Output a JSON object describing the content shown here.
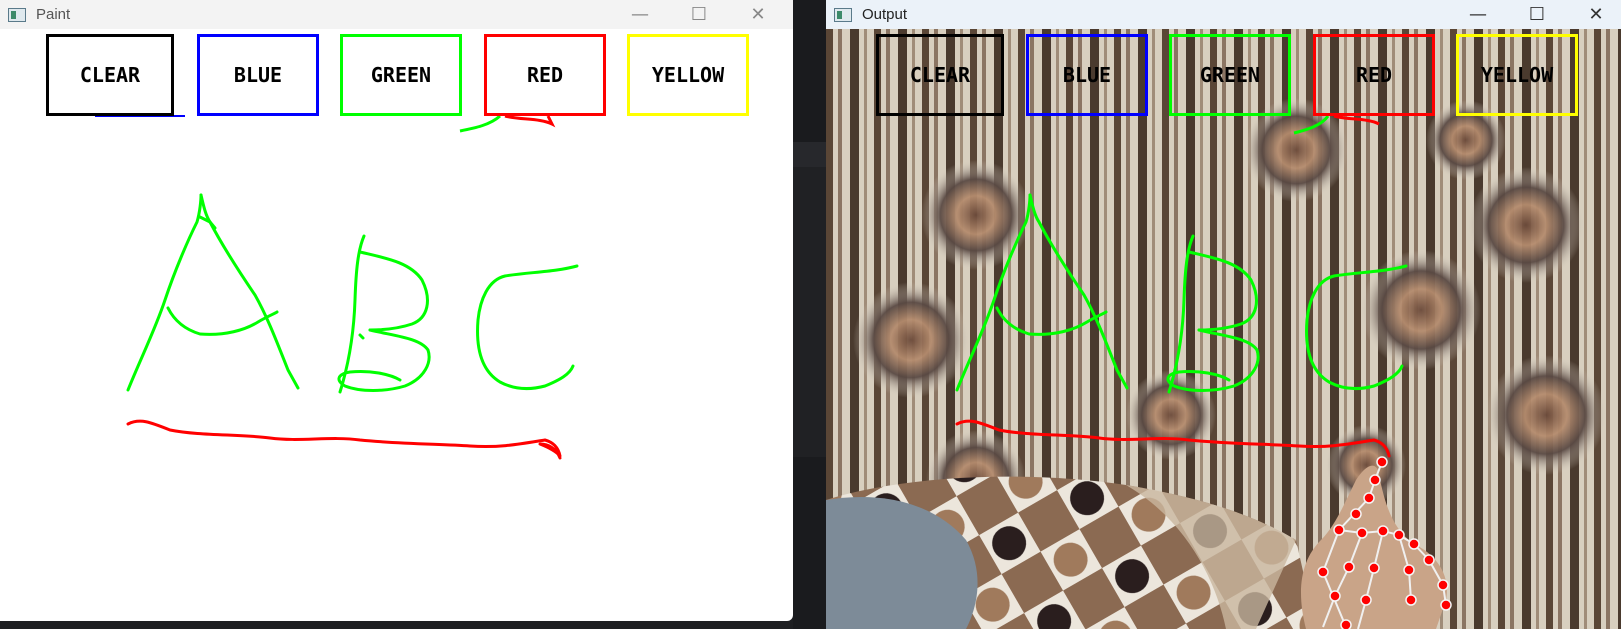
{
  "paint_window": {
    "title": "Paint",
    "icon": "app-window-icon",
    "controls": {
      "minimize": "—",
      "maximize": "☐",
      "close": "✕"
    }
  },
  "output_window": {
    "title": "Output",
    "icon": "app-window-icon",
    "controls": {
      "minimize": "—",
      "maximize": "☐",
      "close": "✕"
    }
  },
  "color_buttons": [
    {
      "label": "CLEAR",
      "color": "#000000"
    },
    {
      "label": "BLUE",
      "color": "#0000ff"
    },
    {
      "label": "GREEN",
      "color": "#00ff00"
    },
    {
      "label": "RED",
      "color": "#ff0000"
    },
    {
      "label": "YELLOW",
      "color": "#ffff00"
    }
  ],
  "drawing": {
    "letters_color": "#00ff00",
    "underline_color": "#ff0000",
    "hand_landmark_color": "#ff0000"
  }
}
